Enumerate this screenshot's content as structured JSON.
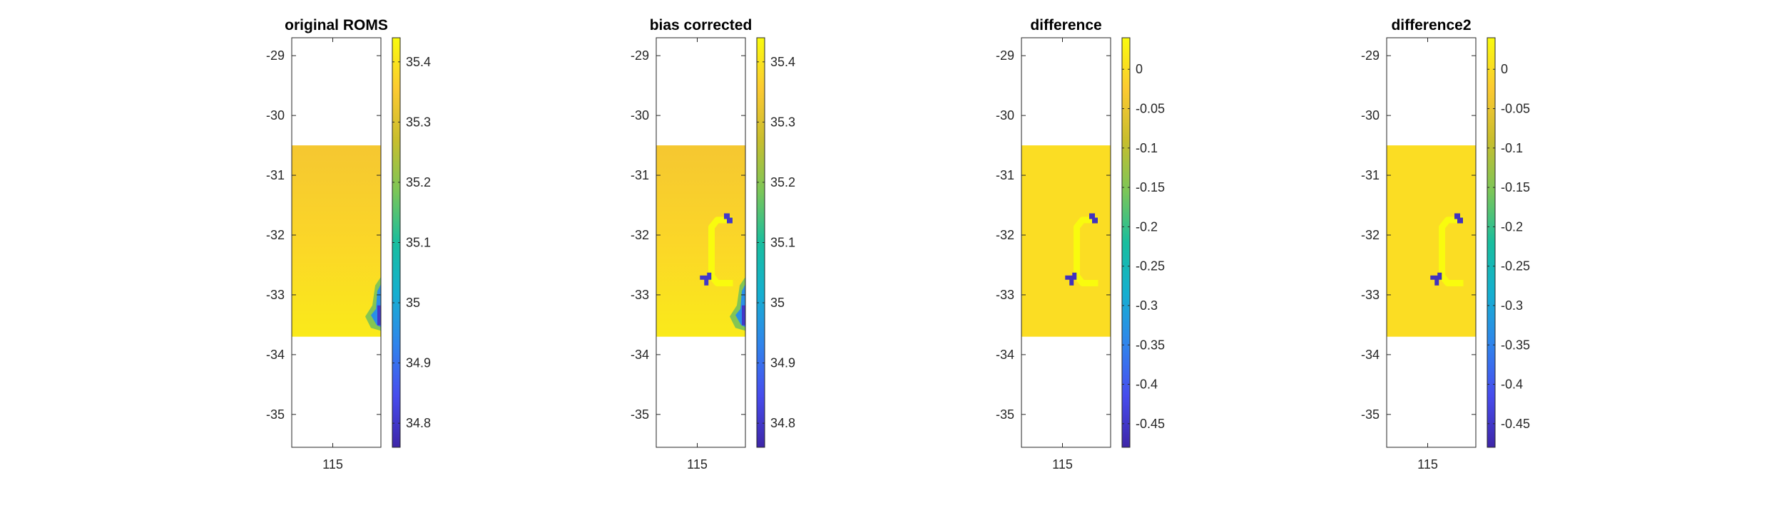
{
  "chart_data": [
    {
      "type": "heatmap",
      "title": "original ROMS",
      "x_ticks": [
        115
      ],
      "y_ticks": [
        -29,
        -30,
        -31,
        -32,
        -33,
        -34,
        -35
      ],
      "ylim": [
        -35.55,
        -28.7
      ],
      "data_extent": {
        "lat": [
          -33.7,
          -30.5
        ]
      },
      "colorbar": {
        "min": 34.76,
        "max": 35.44,
        "ticks": [
          35.4,
          35.3,
          35.2,
          35.1,
          35.0,
          34.9,
          34.8
        ],
        "tick_labels": [
          "35.4",
          "35.3",
          "35.2",
          "35.1",
          "35",
          "34.9",
          "34.8"
        ]
      },
      "background_value": 35.34,
      "features": [
        {
          "kind": "gradient_bottom",
          "value": 35.41
        },
        {
          "kind": "coastal_low",
          "value": 34.95,
          "min_value": 34.8,
          "lat": [
            -33.6,
            -32.7
          ]
        }
      ]
    },
    {
      "type": "heatmap",
      "title": "bias corrected",
      "x_ticks": [
        115
      ],
      "y_ticks": [
        -29,
        -30,
        -31,
        -32,
        -33,
        -34,
        -35
      ],
      "ylim": [
        -35.55,
        -28.7
      ],
      "data_extent": {
        "lat": [
          -33.7,
          -30.5
        ]
      },
      "colorbar": {
        "min": 34.76,
        "max": 35.44,
        "ticks": [
          35.4,
          35.3,
          35.2,
          35.1,
          35.0,
          34.9,
          34.8
        ],
        "tick_labels": [
          "35.4",
          "35.3",
          "35.2",
          "35.1",
          "35",
          "34.9",
          "34.8"
        ]
      },
      "background_value": 35.34,
      "features": [
        {
          "kind": "gradient_bottom",
          "value": 35.41
        },
        {
          "kind": "coastal_low",
          "value": 34.95,
          "min_value": 34.8,
          "lat": [
            -33.6,
            -32.7
          ]
        },
        {
          "kind": "bracket",
          "value": 35.44
        },
        {
          "kind": "blobs",
          "value": 34.8
        }
      ]
    },
    {
      "type": "heatmap",
      "title": "difference",
      "x_ticks": [
        115
      ],
      "y_ticks": [
        -29,
        -30,
        -31,
        -32,
        -33,
        -34,
        -35
      ],
      "ylim": [
        -35.55,
        -28.7
      ],
      "data_extent": {
        "lat": [
          -33.7,
          -30.5
        ]
      },
      "colorbar": {
        "min": -0.48,
        "max": 0.04,
        "ticks": [
          0,
          -0.05,
          -0.1,
          -0.15,
          -0.2,
          -0.25,
          -0.3,
          -0.35,
          -0.4,
          -0.45
        ],
        "tick_labels": [
          "0",
          "-0.05",
          "-0.1",
          "-0.15",
          "-0.2",
          "-0.25",
          "-0.3",
          "-0.35",
          "-0.4",
          "-0.45"
        ]
      },
      "background_value": 0,
      "features": [
        {
          "kind": "bracket",
          "value": 0.04
        },
        {
          "kind": "blobs",
          "value": -0.46
        }
      ]
    },
    {
      "type": "heatmap",
      "title": "difference2",
      "x_ticks": [
        115
      ],
      "y_ticks": [
        -29,
        -30,
        -31,
        -32,
        -33,
        -34,
        -35
      ],
      "ylim": [
        -35.55,
        -28.7
      ],
      "data_extent": {
        "lat": [
          -33.7,
          -30.5
        ]
      },
      "colorbar": {
        "min": -0.48,
        "max": 0.04,
        "ticks": [
          0,
          -0.05,
          -0.1,
          -0.15,
          -0.2,
          -0.25,
          -0.3,
          -0.35,
          -0.4,
          -0.45
        ],
        "tick_labels": [
          "0",
          "-0.05",
          "-0.1",
          "-0.15",
          "-0.2",
          "-0.25",
          "-0.3",
          "-0.35",
          "-0.4",
          "-0.45"
        ]
      },
      "background_value": 0,
      "features": [
        {
          "kind": "bracket",
          "value": 0.04
        },
        {
          "kind": "blobs",
          "value": -0.46
        }
      ]
    }
  ]
}
